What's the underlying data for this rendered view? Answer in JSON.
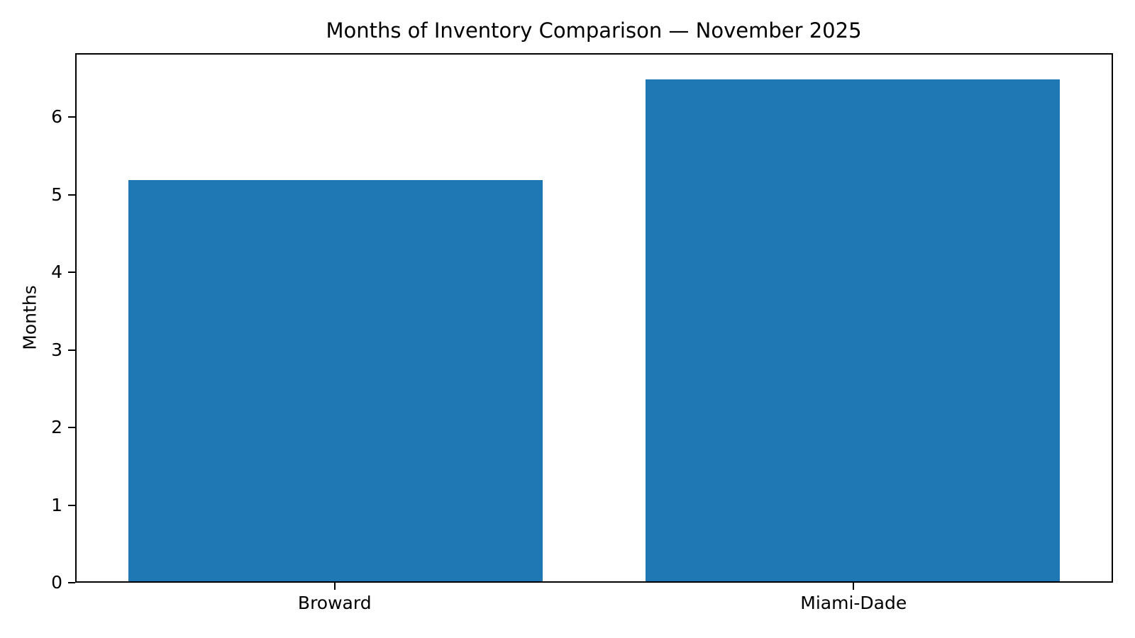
{
  "chart_data": {
    "type": "bar",
    "title": "Months of Inventory Comparison — November 2025",
    "ylabel": "Months",
    "xlabel": "",
    "categories": [
      "Broward",
      "Miami-Dade"
    ],
    "values": [
      5.2,
      6.5
    ],
    "yticks": [
      0,
      1,
      2,
      3,
      4,
      5,
      6
    ],
    "ylim": [
      0,
      6.825
    ],
    "bar_color": "#1f77b4",
    "bar_width_fraction": 0.4,
    "grid": false,
    "legend_position": "none"
  }
}
